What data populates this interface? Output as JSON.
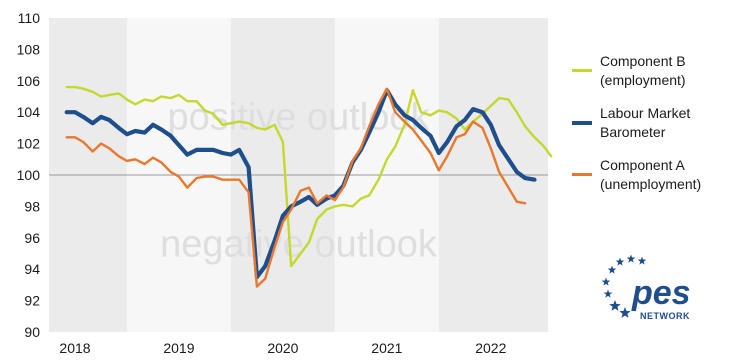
{
  "chart_data": {
    "type": "line",
    "title": "",
    "xlabel": "",
    "ylabel": "",
    "ylim": [
      90,
      110
    ],
    "yticks": [
      90,
      92,
      94,
      96,
      98,
      100,
      102,
      104,
      106,
      108,
      110
    ],
    "xlim": [
      2017.75,
      2022.55
    ],
    "xtick_labels": [
      {
        "x": 2018.0,
        "label": "2018"
      },
      {
        "x": 2019.0,
        "label": "2019"
      },
      {
        "x": 2020.0,
        "label": "2020"
      },
      {
        "x": 2021.0,
        "label": "2021"
      },
      {
        "x": 2022.0,
        "label": "2022"
      }
    ],
    "reference_line": 100,
    "grid": "alternating vertical year bands",
    "legend_position": "right",
    "annotations": [
      "positive outlook",
      "negative outlook"
    ],
    "series": [
      {
        "name": "Component B\n(employment)",
        "color": "#c5d82e",
        "points": [
          [
            2017.92,
            105.6
          ],
          [
            2018.0,
            105.6
          ],
          [
            2018.08,
            105.5
          ],
          [
            2018.17,
            105.3
          ],
          [
            2018.25,
            105.0
          ],
          [
            2018.33,
            105.1
          ],
          [
            2018.42,
            105.2
          ],
          [
            2018.5,
            104.8
          ],
          [
            2018.58,
            104.5
          ],
          [
            2018.67,
            104.8
          ],
          [
            2018.75,
            104.7
          ],
          [
            2018.83,
            105.0
          ],
          [
            2018.92,
            104.9
          ],
          [
            2019.0,
            105.1
          ],
          [
            2019.08,
            104.7
          ],
          [
            2019.17,
            104.7
          ],
          [
            2019.25,
            104.1
          ],
          [
            2019.33,
            103.9
          ],
          [
            2019.42,
            103.2
          ],
          [
            2019.5,
            103.3
          ],
          [
            2019.58,
            103.4
          ],
          [
            2019.67,
            103.3
          ],
          [
            2019.75,
            103.0
          ],
          [
            2019.83,
            102.9
          ],
          [
            2019.92,
            103.2
          ],
          [
            2020.0,
            102.1
          ],
          [
            2020.08,
            94.2
          ],
          [
            2020.17,
            95.0
          ],
          [
            2020.25,
            95.7
          ],
          [
            2020.33,
            97.2
          ],
          [
            2020.42,
            97.8
          ],
          [
            2020.5,
            98.0
          ],
          [
            2020.58,
            98.1
          ],
          [
            2020.67,
            98.0
          ],
          [
            2020.75,
            98.5
          ],
          [
            2020.83,
            98.7
          ],
          [
            2020.92,
            99.7
          ],
          [
            2021.0,
            101.0
          ],
          [
            2021.08,
            101.8
          ],
          [
            2021.17,
            103.2
          ],
          [
            2021.25,
            105.4
          ],
          [
            2021.33,
            104.0
          ],
          [
            2021.42,
            103.8
          ],
          [
            2021.5,
            104.1
          ],
          [
            2021.58,
            104.0
          ],
          [
            2021.67,
            103.6
          ],
          [
            2021.75,
            102.9
          ],
          [
            2021.83,
            103.4
          ],
          [
            2021.92,
            103.9
          ],
          [
            2022.0,
            104.4
          ],
          [
            2022.08,
            104.9
          ],
          [
            2022.17,
            104.8
          ],
          [
            2022.25,
            104.0
          ],
          [
            2022.33,
            103.1
          ],
          [
            2022.42,
            102.4
          ],
          [
            2022.5,
            101.9
          ],
          [
            2022.58,
            101.2
          ]
        ]
      },
      {
        "name": "Labour Market\nBarometer",
        "color": "#1f4e8c",
        "points": [
          [
            2017.92,
            104.0
          ],
          [
            2018.0,
            104.0
          ],
          [
            2018.08,
            103.7
          ],
          [
            2018.17,
            103.3
          ],
          [
            2018.25,
            103.7
          ],
          [
            2018.33,
            103.5
          ],
          [
            2018.42,
            103.0
          ],
          [
            2018.5,
            102.6
          ],
          [
            2018.58,
            102.8
          ],
          [
            2018.67,
            102.7
          ],
          [
            2018.75,
            103.2
          ],
          [
            2018.83,
            102.9
          ],
          [
            2018.92,
            102.5
          ],
          [
            2019.0,
            101.9
          ],
          [
            2019.08,
            101.3
          ],
          [
            2019.17,
            101.6
          ],
          [
            2019.25,
            101.6
          ],
          [
            2019.33,
            101.6
          ],
          [
            2019.42,
            101.4
          ],
          [
            2019.5,
            101.3
          ],
          [
            2019.58,
            101.6
          ],
          [
            2019.67,
            100.5
          ],
          [
            2019.75,
            93.5
          ],
          [
            2019.83,
            94.2
          ],
          [
            2019.92,
            95.8
          ],
          [
            2020.0,
            97.4
          ],
          [
            2020.08,
            98.0
          ],
          [
            2020.17,
            98.3
          ],
          [
            2020.25,
            98.6
          ],
          [
            2020.33,
            98.1
          ],
          [
            2020.42,
            98.5
          ],
          [
            2020.5,
            98.7
          ],
          [
            2020.58,
            99.3
          ],
          [
            2020.67,
            100.8
          ],
          [
            2020.75,
            101.6
          ],
          [
            2020.83,
            102.7
          ],
          [
            2020.92,
            104.0
          ],
          [
            2021.0,
            105.4
          ],
          [
            2021.08,
            104.5
          ],
          [
            2021.17,
            103.8
          ],
          [
            2021.25,
            103.5
          ],
          [
            2021.33,
            103.0
          ],
          [
            2021.42,
            102.5
          ],
          [
            2021.5,
            101.4
          ],
          [
            2021.58,
            102.1
          ],
          [
            2021.67,
            103.1
          ],
          [
            2021.75,
            103.5
          ],
          [
            2021.83,
            104.2
          ],
          [
            2021.92,
            104.0
          ],
          [
            2022.0,
            103.2
          ],
          [
            2022.08,
            101.9
          ],
          [
            2022.17,
            101.0
          ],
          [
            2022.25,
            100.2
          ],
          [
            2022.33,
            99.8
          ],
          [
            2022.42,
            99.7
          ]
        ]
      },
      {
        "name": "Component A\n(unemployment)",
        "color": "#e8782e",
        "points": [
          [
            2017.92,
            102.4
          ],
          [
            2018.0,
            102.4
          ],
          [
            2018.08,
            102.1
          ],
          [
            2018.17,
            101.5
          ],
          [
            2018.25,
            102.0
          ],
          [
            2018.33,
            101.7
          ],
          [
            2018.42,
            101.2
          ],
          [
            2018.5,
            100.9
          ],
          [
            2018.58,
            101.0
          ],
          [
            2018.67,
            100.7
          ],
          [
            2018.75,
            101.1
          ],
          [
            2018.83,
            100.8
          ],
          [
            2018.92,
            100.2
          ],
          [
            2019.0,
            99.9
          ],
          [
            2019.08,
            99.2
          ],
          [
            2019.17,
            99.8
          ],
          [
            2019.25,
            99.9
          ],
          [
            2019.33,
            99.9
          ],
          [
            2019.42,
            99.7
          ],
          [
            2019.5,
            99.7
          ],
          [
            2019.58,
            99.7
          ],
          [
            2019.67,
            98.9
          ],
          [
            2019.75,
            92.9
          ],
          [
            2019.83,
            93.4
          ],
          [
            2019.92,
            95.4
          ],
          [
            2020.0,
            97.0
          ],
          [
            2020.08,
            97.8
          ],
          [
            2020.17,
            99.0
          ],
          [
            2020.25,
            99.2
          ],
          [
            2020.33,
            98.2
          ],
          [
            2020.42,
            98.7
          ],
          [
            2020.5,
            98.4
          ],
          [
            2020.58,
            99.2
          ],
          [
            2020.67,
            100.9
          ],
          [
            2020.75,
            101.7
          ],
          [
            2020.83,
            103.1
          ],
          [
            2020.92,
            104.5
          ],
          [
            2021.0,
            105.5
          ],
          [
            2021.08,
            104.0
          ],
          [
            2021.17,
            103.4
          ],
          [
            2021.25,
            102.9
          ],
          [
            2021.33,
            102.2
          ],
          [
            2021.42,
            101.4
          ],
          [
            2021.5,
            100.3
          ],
          [
            2021.58,
            101.2
          ],
          [
            2021.67,
            102.4
          ],
          [
            2021.75,
            102.6
          ],
          [
            2021.83,
            103.4
          ],
          [
            2021.92,
            103.0
          ],
          [
            2022.0,
            101.7
          ],
          [
            2022.08,
            100.2
          ],
          [
            2022.17,
            99.2
          ],
          [
            2022.25,
            98.3
          ],
          [
            2022.33,
            98.2
          ]
        ]
      }
    ]
  },
  "logo": {
    "text": "pes",
    "subtext": "NETWORK",
    "star_color": "#1f4e8c",
    "text_color": "#1f4e8c"
  }
}
